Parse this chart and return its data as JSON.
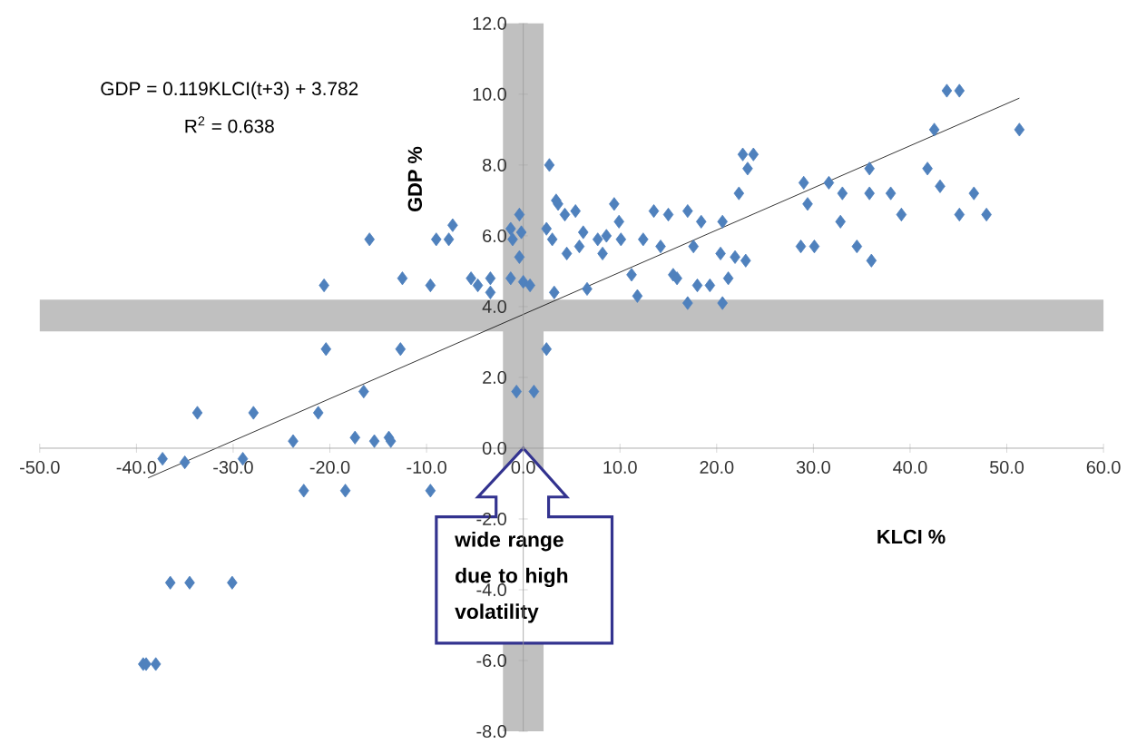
{
  "chart_data": {
    "type": "scatter",
    "xlabel": "KLCI %",
    "ylabel": "GDP %",
    "annotations": [
      "GDP = 0.119KLCI(t+3) + 3.782",
      "R$^{2}$ = 0.638",
      "wide range due to high volatility"
    ],
    "xlim": [
      -50,
      60
    ],
    "ylim": [
      -8,
      12
    ],
    "xticks": [
      {
        "value": -50,
        "label": "-50.0"
      },
      {
        "value": -40,
        "label": "-40.0"
      },
      {
        "value": -30,
        "label": "-30.0"
      },
      {
        "value": -20,
        "label": "-20.0"
      },
      {
        "value": -10,
        "label": "-10.0"
      },
      {
        "value": 0,
        "label": "0.0"
      },
      {
        "value": 10,
        "label": "10.0"
      },
      {
        "value": 20,
        "label": "20.0"
      },
      {
        "value": 30,
        "label": "30.0"
      },
      {
        "value": 40,
        "label": "40.0"
      },
      {
        "value": 50,
        "label": "50.0"
      },
      {
        "value": 60,
        "label": "60.0"
      }
    ],
    "yticks": [
      {
        "value": -8,
        "label": "-8.0"
      },
      {
        "value": -6,
        "label": "-6.0"
      },
      {
        "value": -4,
        "label": "-4.0"
      },
      {
        "value": -2,
        "label": "-2.0"
      },
      {
        "value": 0,
        "label": "0.0"
      },
      {
        "value": 2,
        "label": "2.0"
      },
      {
        "value": 4,
        "label": "4.0"
      },
      {
        "value": 6,
        "label": "6.0"
      },
      {
        "value": 8,
        "label": "8.0"
      },
      {
        "value": 10,
        "label": "10.0"
      },
      {
        "value": 12,
        "label": "12.0"
      }
    ],
    "grid": false,
    "bands": [
      {
        "axis": "x",
        "from": -2.1,
        "to": 2.1,
        "color": "#c0c0c0"
      },
      {
        "axis": "y",
        "from": 3.3,
        "to": 4.2,
        "color": "#c0c0c0"
      }
    ],
    "series": [
      {
        "marker": "diamond",
        "color": "#4f81bd",
        "x": [
          -37.3,
          -35.0,
          -33.7,
          -29.0,
          -27.9,
          -23.8,
          -21.2,
          -20.6,
          -20.4,
          -17.4,
          -16.5,
          -15.9,
          -15.4,
          -13.9,
          -13.7,
          -12.7,
          -12.5,
          -9.6,
          -9.0,
          -7.7,
          -7.3,
          -5.4,
          -4.7,
          -3.4,
          -3.4,
          -1.3,
          -1.1,
          -0.4,
          -0.2,
          -0.4,
          -1.3,
          0.0,
          0.7,
          -0.7,
          1.1,
          2.4,
          2.7,
          2.4,
          3.0,
          3.2,
          3.6,
          -9.6,
          -22.7,
          -18.4,
          -36.5,
          -34.5,
          -30.1,
          -39.3,
          -39.0,
          -38.0,
          3.4,
          4.3,
          5.4,
          6.2,
          4.5,
          5.8,
          7.7,
          8.6,
          8.2,
          9.4,
          9.9,
          10.1,
          6.6,
          11.2,
          11.8,
          12.4,
          13.5,
          15.0,
          14.2,
          15.5,
          15.9,
          17.0,
          17.6,
          18.4,
          17.0,
          18.0,
          19.3,
          20.6,
          20.4,
          21.9,
          23.0,
          21.2,
          20.6,
          22.3,
          22.7,
          23.8,
          23.2,
          28.7,
          30.1,
          29.0,
          29.4,
          31.6,
          33.0,
          32.8,
          34.5,
          35.8,
          35.8,
          36.0,
          38.0,
          39.1,
          41.8,
          42.5,
          43.1,
          43.8,
          45.1,
          45.1,
          46.6,
          47.9,
          51.3
        ],
        "values": [
          -0.3,
          -0.4,
          1.0,
          -0.3,
          1.0,
          0.2,
          1.0,
          4.6,
          2.8,
          0.3,
          1.6,
          5.9,
          0.2,
          0.3,
          0.2,
          2.8,
          4.8,
          4.6,
          5.9,
          5.9,
          6.3,
          4.8,
          4.6,
          4.8,
          4.4,
          6.2,
          5.9,
          6.6,
          6.1,
          5.4,
          4.8,
          4.7,
          4.6,
          1.6,
          1.6,
          2.8,
          8.0,
          6.2,
          5.9,
          4.4,
          6.9,
          -1.2,
          -1.2,
          -1.2,
          -3.8,
          -3.8,
          -3.8,
          -6.1,
          -6.1,
          -6.1,
          7.0,
          6.6,
          6.7,
          6.1,
          5.5,
          5.7,
          5.9,
          6.0,
          5.5,
          6.9,
          6.4,
          5.9,
          4.5,
          4.9,
          4.3,
          5.9,
          6.7,
          6.6,
          5.7,
          4.9,
          4.8,
          6.7,
          5.7,
          6.4,
          4.1,
          4.6,
          4.6,
          6.4,
          5.5,
          5.4,
          5.3,
          4.8,
          4.1,
          7.2,
          8.3,
          8.3,
          7.9,
          5.7,
          5.7,
          7.5,
          6.9,
          7.5,
          7.2,
          6.4,
          5.7,
          7.9,
          7.2,
          5.3,
          7.2,
          6.6,
          7.9,
          9.0,
          7.4,
          10.1,
          10.1,
          6.6,
          7.2,
          6.6,
          9.0
        ]
      },
      {
        "type": "line",
        "marker": "none",
        "color": "#000000",
        "x": [
          -38.8,
          51.3
        ],
        "values": [
          -0.84,
          9.89
        ]
      }
    ]
  }
}
